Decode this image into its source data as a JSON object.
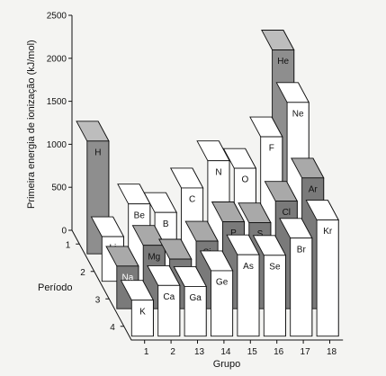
{
  "chart_data": {
    "type": "bar",
    "title": "",
    "ylabel": "Primeira energia de ionização (kJ/mol)",
    "xlabel": "Grupo",
    "zlabel": "Período",
    "ylim": [
      0,
      2500
    ],
    "yticks": [
      "0",
      "500",
      "1000",
      "1500",
      "2000",
      "2500"
    ],
    "groups": [
      "1",
      "2",
      "13",
      "14",
      "15",
      "16",
      "17",
      "18"
    ],
    "periods": [
      "1",
      "2",
      "3",
      "4"
    ],
    "elements": [
      {
        "symbol": "H",
        "group": 0,
        "period": 0,
        "value": 1312
      },
      {
        "symbol": "He",
        "group": 7,
        "period": 0,
        "value": 2372
      },
      {
        "symbol": "Li",
        "group": 0,
        "period": 1,
        "value": 520
      },
      {
        "symbol": "Be",
        "group": 1,
        "period": 1,
        "value": 900
      },
      {
        "symbol": "B",
        "group": 2,
        "period": 1,
        "value": 801
      },
      {
        "symbol": "C",
        "group": 3,
        "period": 1,
        "value": 1086
      },
      {
        "symbol": "N",
        "group": 4,
        "period": 1,
        "value": 1402
      },
      {
        "symbol": "O",
        "group": 5,
        "period": 1,
        "value": 1314
      },
      {
        "symbol": "F",
        "group": 6,
        "period": 1,
        "value": 1681
      },
      {
        "symbol": "Ne",
        "group": 7,
        "period": 1,
        "value": 2081
      },
      {
        "symbol": "Na",
        "group": 0,
        "period": 2,
        "value": 496
      },
      {
        "symbol": "Mg",
        "group": 1,
        "period": 2,
        "value": 738
      },
      {
        "symbol": "Al",
        "group": 2,
        "period": 2,
        "value": 578
      },
      {
        "symbol": "Si",
        "group": 3,
        "period": 2,
        "value": 786
      },
      {
        "symbol": "P",
        "group": 4,
        "period": 2,
        "value": 1012
      },
      {
        "symbol": "S",
        "group": 5,
        "period": 2,
        "value": 1000
      },
      {
        "symbol": "Cl",
        "group": 6,
        "period": 2,
        "value": 1251
      },
      {
        "symbol": "Ar",
        "group": 7,
        "period": 2,
        "value": 1521
      },
      {
        "symbol": "K",
        "group": 0,
        "period": 3,
        "value": 419
      },
      {
        "symbol": "Ca",
        "group": 1,
        "period": 3,
        "value": 590
      },
      {
        "symbol": "Ga",
        "group": 2,
        "period": 3,
        "value": 579
      },
      {
        "symbol": "Ge",
        "group": 3,
        "period": 3,
        "value": 762
      },
      {
        "symbol": "As",
        "group": 4,
        "period": 3,
        "value": 947
      },
      {
        "symbol": "Se",
        "group": 5,
        "period": 3,
        "value": 941
      },
      {
        "symbol": "Br",
        "group": 6,
        "period": 3,
        "value": 1140
      },
      {
        "symbol": "Kr",
        "group": 7,
        "period": 3,
        "value": 1351
      }
    ],
    "grid": false,
    "colors": {
      "period_fronts": [
        "#8e8e8e",
        "#ffffff",
        "#7a7a7a",
        "#ffffff"
      ],
      "period_tops": [
        "#bdbdbd",
        "#ffffff",
        "#a9a9a9",
        "#ffffff"
      ],
      "period_sides": [
        "#5e5e5e",
        "#dcdcdc",
        "#1c1c1c",
        "#dcdcdc"
      ],
      "edge": "#111111"
    }
  }
}
